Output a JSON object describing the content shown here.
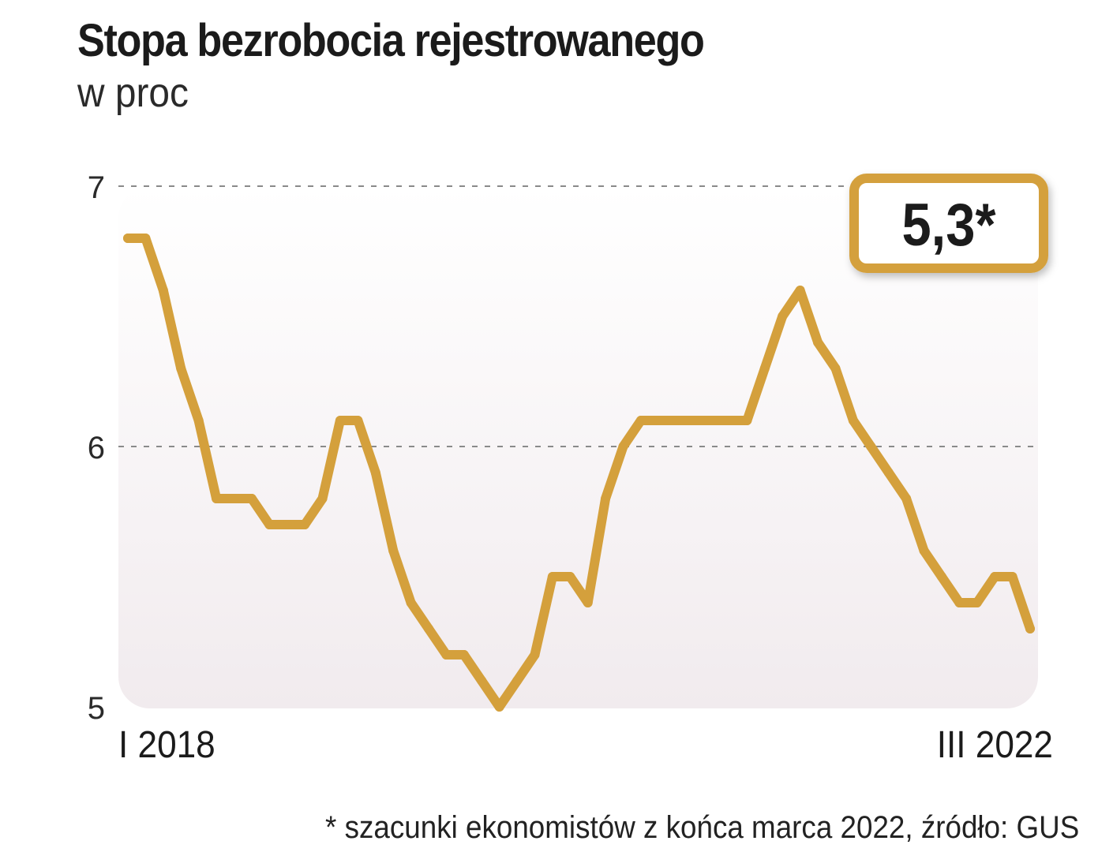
{
  "chart_data": {
    "type": "line",
    "title": "Stopa bezrobocia rejestrowanego",
    "subtitle": "w proc",
    "xlabel": "",
    "ylabel": "",
    "ylim": [
      5,
      7
    ],
    "yticks": [
      "5",
      "6",
      "7"
    ],
    "x_start_label": "I 2018",
    "x_end_label": "III 2022",
    "grid": true,
    "series": [
      {
        "name": "Stopa bezrobocia rejestrowanego",
        "color": "#D4A03C",
        "values": [
          6.8,
          6.8,
          6.6,
          6.3,
          6.1,
          5.8,
          5.8,
          5.8,
          5.7,
          5.7,
          5.7,
          5.8,
          6.1,
          6.1,
          5.9,
          5.6,
          5.4,
          5.3,
          5.2,
          5.2,
          5.1,
          5.0,
          5.1,
          5.2,
          5.5,
          5.5,
          5.4,
          5.8,
          6.0,
          6.1,
          6.1,
          6.1,
          6.1,
          6.1,
          6.1,
          6.1,
          6.3,
          6.5,
          6.6,
          6.4,
          6.3,
          6.1,
          6.0,
          5.9,
          5.8,
          5.6,
          5.5,
          5.4,
          5.4,
          5.5,
          5.5,
          5.3
        ]
      }
    ],
    "annotation": {
      "label": "5,3*",
      "value": 5.3,
      "note": "szacunki ekonomistów"
    },
    "footnote": "* szacunki ekonomistów z końca marca 2022, źródło: GUS"
  },
  "colors": {
    "line": "#D4A03C",
    "badge_border": "#D4A03C",
    "plot_background": "#F6F1F3",
    "grid": "#8a8a8a"
  }
}
